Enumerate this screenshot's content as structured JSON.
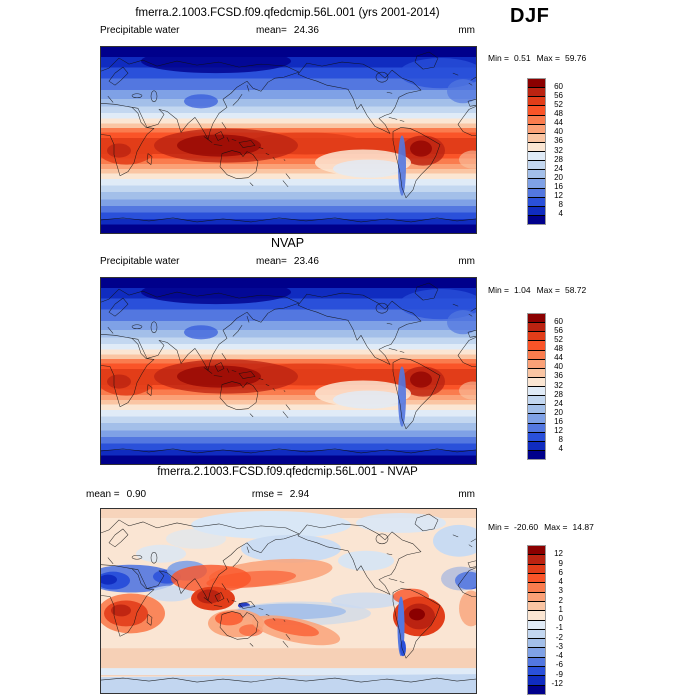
{
  "figure": {
    "title": "fmerra.2.1003.FCSD.f09.qfedcmip.56L.001 (yrs 2001-2014)",
    "season": "DJF"
  },
  "palette": [
    "#8b0000",
    "#bb2311",
    "#e23d19",
    "#fa5428",
    "#fa7c4e",
    "#fba177",
    "#fac5a3",
    "#fbe6d3",
    "#e0ebf7",
    "#c3d7f0",
    "#a3bfe9",
    "#7fa1e6",
    "#5377e0",
    "#2a50da",
    "#102cc0",
    "#00008b"
  ],
  "panels": [
    {
      "field": "Precipitable water",
      "mean_label": "mean=",
      "mean": "24.36",
      "units": "mm",
      "min_label": "Min =",
      "min": "0.51",
      "max_label": "Max =",
      "max": "59.76",
      "colorbar_ticks": [
        "60",
        "56",
        "52",
        "48",
        "44",
        "40",
        "36",
        "32",
        "28",
        "24",
        "20",
        "16",
        "12",
        "8",
        "4"
      ]
    },
    {
      "title": "NVAP",
      "field": "Precipitable water",
      "mean_label": "mean=",
      "mean": "23.46",
      "units": "mm",
      "min_label": "Min =",
      "min": "1.04",
      "max_label": "Max =",
      "max": "58.72",
      "colorbar_ticks": [
        "60",
        "56",
        "52",
        "48",
        "44",
        "40",
        "36",
        "32",
        "28",
        "24",
        "20",
        "16",
        "12",
        "8",
        "4"
      ]
    },
    {
      "title": "fmerra.2.1003.FCSD.f09.qfedcmip.56L.001 - NVAP",
      "mean_label": "mean =",
      "mean": "0.90",
      "rmse_label": "rmse =",
      "rmse": "2.94",
      "units": "mm",
      "min_label": "Min =",
      "min": "-20.60",
      "max_label": "Max =",
      "max": "14.87",
      "colorbar_ticks": [
        "12",
        "9",
        "6",
        "4",
        "3",
        "2",
        "1",
        "0",
        "-1",
        "-2",
        "-3",
        "-4",
        "-6",
        "-9",
        "-12"
      ]
    }
  ],
  "chart_data": [
    {
      "type": "heatmap",
      "title": "fmerra.2.1003.FCSD.f09.qfedcmip.56L.001 (yrs 2001-2014)",
      "variable": "Precipitable water",
      "season": "DJF",
      "units": "mm",
      "mean": 24.36,
      "min": 0.51,
      "max": 59.76,
      "contour_levels": [
        4,
        8,
        12,
        16,
        20,
        24,
        28,
        32,
        36,
        40,
        44,
        48,
        52,
        56,
        60
      ],
      "colormap": "blue-white-red, 16 classes",
      "pattern": "global map: dark blue poles, deep red tropical band over Indo-Pacific warm pool, southern Africa and Amazon"
    },
    {
      "type": "heatmap",
      "title": "NVAP",
      "variable": "Precipitable water",
      "season": "DJF",
      "units": "mm",
      "mean": 23.46,
      "min": 1.04,
      "max": 58.72,
      "contour_levels": [
        4,
        8,
        12,
        16,
        20,
        24,
        28,
        32,
        36,
        40,
        44,
        48,
        52,
        56,
        60
      ],
      "colormap": "blue-white-red, 16 classes",
      "pattern": "global map: same zonal structure as model panel"
    },
    {
      "type": "heatmap",
      "title": "fmerra.2.1003.FCSD.f09.qfedcmip.56L.001 - NVAP",
      "variable": "Precipitable water difference",
      "season": "DJF",
      "units": "mm",
      "mean": 0.9,
      "rmse": 2.94,
      "min": -20.6,
      "max": 14.87,
      "contour_levels": [
        -12,
        -9,
        -6,
        -4,
        -3,
        -2,
        -1,
        0,
        1,
        2,
        3,
        4,
        6,
        9,
        12
      ],
      "colormap": "blue-white-red, 16 classes",
      "pattern": "mostly pale pink; wet bias (red) over southern Africa, SE Asia/NW Pacific, Australia, Amazon; dry bias (blue) over Sahara-Arabia-India, equatorial central Pacific, Southern Ocean"
    }
  ]
}
